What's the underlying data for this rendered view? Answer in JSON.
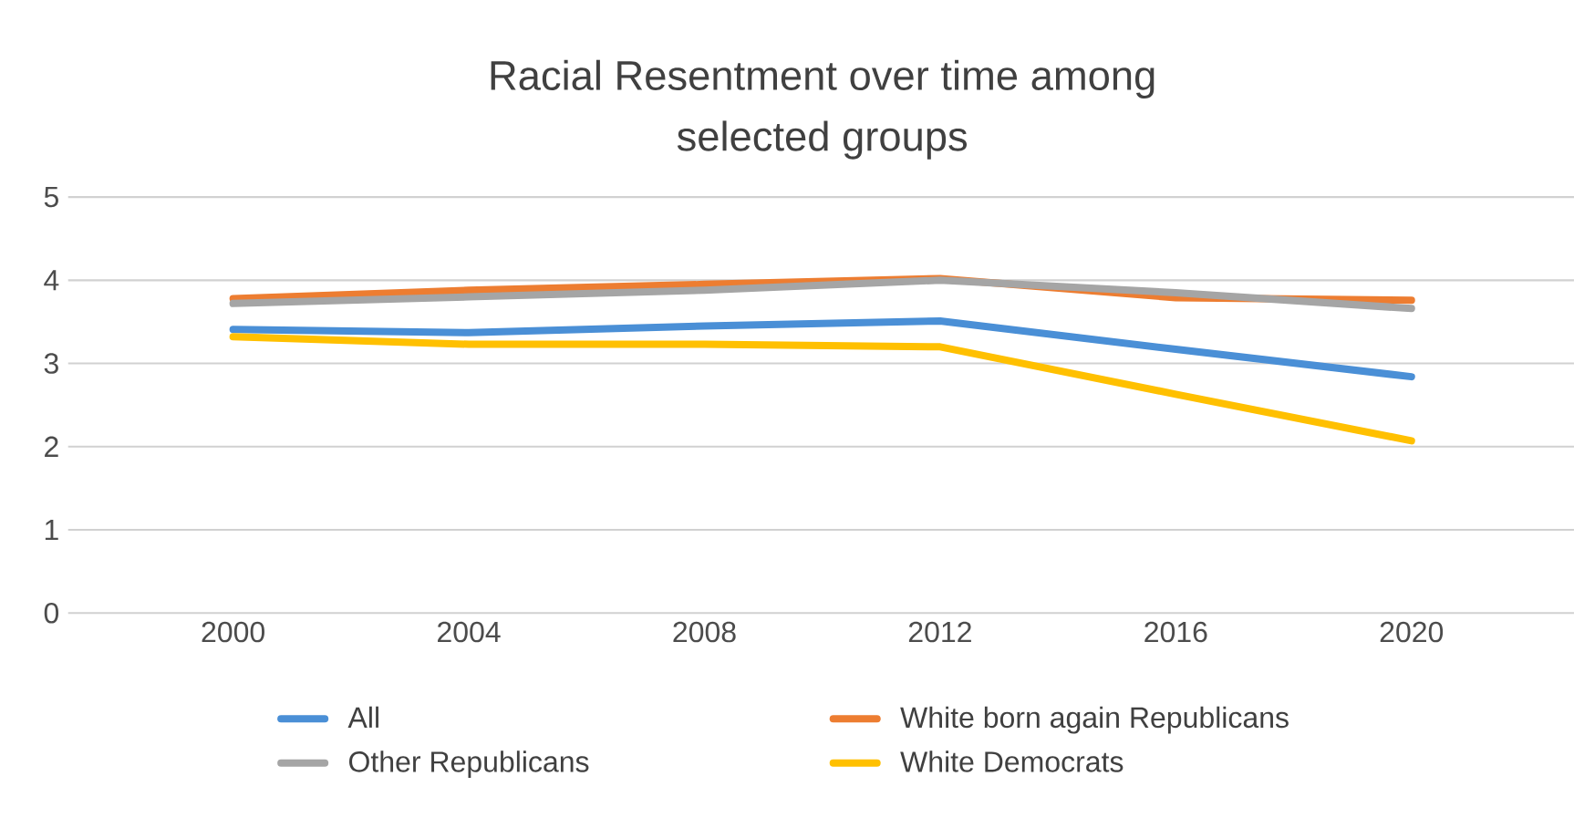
{
  "chart_data": {
    "type": "line",
    "title": "Racial Resentment over time among selected groups",
    "categories": [
      "2000",
      "2004",
      "2008",
      "2012",
      "2016",
      "2020"
    ],
    "series": [
      {
        "name": "All",
        "color": "#4a8fd6",
        "values": [
          3.41,
          3.37,
          3.45,
          3.51,
          3.17,
          2.84
        ]
      },
      {
        "name": "White born again Republicans",
        "color": "#ed7d31",
        "values": [
          3.78,
          3.88,
          3.95,
          4.02,
          3.79,
          3.76
        ]
      },
      {
        "name": "Other Republicans",
        "color": "#a5a5a5",
        "values": [
          3.72,
          3.8,
          3.88,
          4.0,
          3.85,
          3.66
        ]
      },
      {
        "name": "White Democrats",
        "color": "#ffc000",
        "values": [
          3.32,
          3.23,
          3.23,
          3.2,
          2.63,
          2.07
        ]
      }
    ],
    "ylim": [
      0,
      5
    ],
    "yticks": [
      0,
      1,
      2,
      3,
      4,
      5
    ],
    "grid": "y",
    "legend": "bottom",
    "marker": "none",
    "line_style": "solid"
  }
}
